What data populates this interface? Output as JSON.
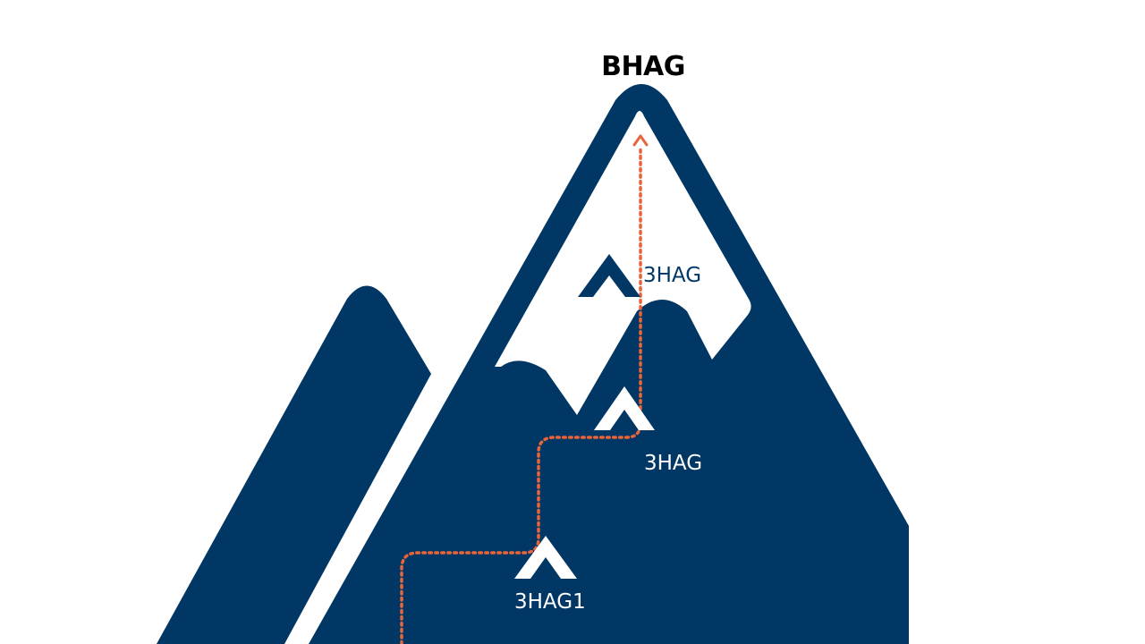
{
  "diagram": {
    "summit_label": "BHAG",
    "milestones": [
      {
        "label": "3HAG1"
      },
      {
        "label": "3HAG"
      },
      {
        "label": "3HAG"
      }
    ]
  },
  "colors": {
    "mountain": "#003764",
    "snow": "#ffffff",
    "path": "#e8643a",
    "title": "#000000",
    "label_on_dark": "#ffffff",
    "label_on_snow": "#003764"
  },
  "icons": {
    "milestone_marker": "tent-icon",
    "path_end": "arrow-up-icon"
  }
}
